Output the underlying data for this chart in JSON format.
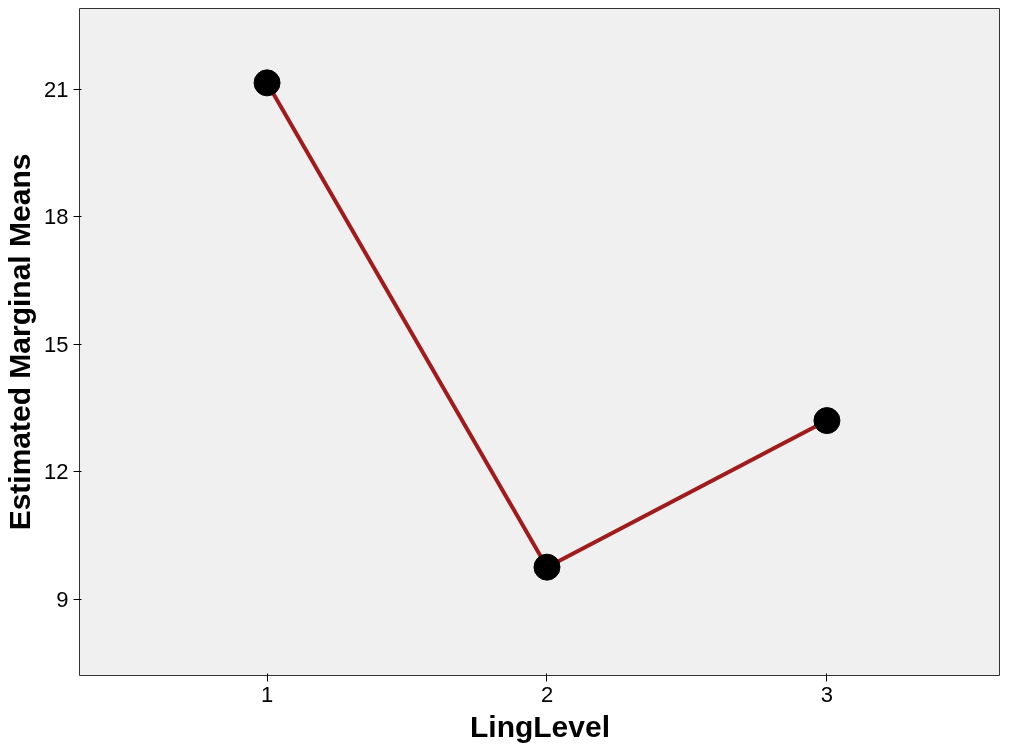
{
  "chart_data": {
    "type": "line",
    "xlabel": "LingLevel",
    "ylabel": "Estimated Marginal Means",
    "categories": [
      "1",
      "2",
      "3"
    ],
    "series": [
      {
        "color": "#a01c1c",
        "values": [
          21.15,
          9.75,
          13.2
        ]
      }
    ],
    "ylim": [
      7.2,
      22.9
    ],
    "yticks": [
      9,
      12,
      15,
      18,
      21
    ],
    "marker": "circle",
    "grid": false
  }
}
